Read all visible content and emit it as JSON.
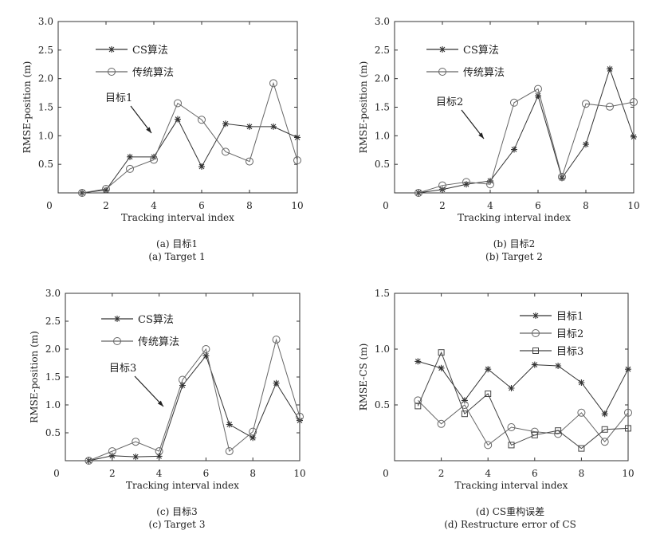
{
  "chart_data": [
    {
      "type": "line",
      "id": "a",
      "ylabel": "RMSE-position (m)",
      "xlabel": "Tracking interval index",
      "caption_cn": "(a) 目标1",
      "caption_en": "(a) Target 1",
      "annotation": "目标1",
      "xlim": [
        0,
        10
      ],
      "ylim": [
        0,
        3.0
      ],
      "xticks": [
        "0",
        "2",
        "4",
        "6",
        "8",
        "10"
      ],
      "yticks": [
        "0.5",
        "1.0",
        "1.5",
        "2.0",
        "2.5",
        "3.0"
      ],
      "legend_position": "top-left",
      "x": [
        1,
        2,
        3,
        4,
        5,
        6,
        7,
        8,
        9,
        10
      ],
      "series": [
        {
          "name": "CS算法",
          "marker": "star",
          "values": [
            0,
            0.05,
            0.63,
            0.63,
            1.29,
            0.46,
            1.21,
            1.16,
            1.16,
            0.97
          ]
        },
        {
          "name": "传统算法",
          "marker": "circle",
          "values": [
            0,
            0.07,
            0.42,
            0.58,
            1.57,
            1.28,
            0.72,
            0.55,
            1.92,
            0.57
          ]
        }
      ]
    },
    {
      "type": "line",
      "id": "b",
      "ylabel": "RMSE-position (m)",
      "xlabel": "Tracking interval index",
      "caption_cn": "(b) 目标2",
      "caption_en": "(b) Target 2",
      "annotation": "目标2",
      "xlim": [
        0,
        10
      ],
      "ylim": [
        0,
        3.0
      ],
      "xticks": [
        "0",
        "2",
        "4",
        "6",
        "8",
        "10"
      ],
      "yticks": [
        "0.5",
        "1.0",
        "1.5",
        "2.0",
        "2.5",
        "3.0"
      ],
      "legend_position": "top-left",
      "x": [
        1,
        2,
        3,
        4,
        5,
        6,
        7,
        8,
        9,
        10
      ],
      "series": [
        {
          "name": "CS算法",
          "marker": "star",
          "values": [
            0,
            0.06,
            0.15,
            0.21,
            0.76,
            1.7,
            0.26,
            0.85,
            2.17,
            0.98
          ]
        },
        {
          "name": "传统算法",
          "marker": "circle",
          "values": [
            0,
            0.13,
            0.19,
            0.15,
            1.58,
            1.82,
            0.28,
            1.56,
            1.51,
            1.59
          ]
        }
      ]
    },
    {
      "type": "line",
      "id": "c",
      "ylabel": "RMSE-position (m)",
      "xlabel": "Tracking interval index",
      "caption_cn": "(c) 目标3",
      "caption_en": "(c) Target 3",
      "annotation": "目标3",
      "xlim": [
        0,
        10
      ],
      "ylim": [
        0,
        3.0
      ],
      "xticks": [
        "0",
        "2",
        "4",
        "6",
        "8",
        "10"
      ],
      "yticks": [
        "0.5",
        "1.0",
        "1.5",
        "2.0",
        "2.5",
        "3.0"
      ],
      "legend_position": "top-left",
      "x": [
        1,
        2,
        3,
        4,
        5,
        6,
        7,
        8,
        9,
        10
      ],
      "series": [
        {
          "name": "CS算法",
          "marker": "star",
          "values": [
            0,
            0.09,
            0.07,
            0.08,
            1.35,
            1.88,
            0.65,
            0.41,
            1.39,
            0.72
          ]
        },
        {
          "name": "传统算法",
          "marker": "circle",
          "values": [
            0,
            0.17,
            0.34,
            0.17,
            1.45,
            2.0,
            0.17,
            0.52,
            2.17,
            0.79
          ]
        }
      ]
    },
    {
      "type": "line",
      "id": "d",
      "ylabel": "RMSE-CS (m)",
      "xlabel": "Tracking interval index",
      "caption_cn": "(d) CS重构误差",
      "caption_en": "(d) Restructure error of CS",
      "xlim": [
        0,
        10
      ],
      "ylim": [
        0,
        1.5
      ],
      "xticks": [
        "0",
        "2",
        "4",
        "6",
        "8",
        "10"
      ],
      "yticks": [
        "0.5",
        "1.0",
        "1.5"
      ],
      "legend_position": "top-right",
      "x": [
        1,
        2,
        3,
        4,
        5,
        6,
        7,
        8,
        9,
        10
      ],
      "series": [
        {
          "name": "目标1",
          "marker": "star",
          "values": [
            0.89,
            0.83,
            0.54,
            0.82,
            0.65,
            0.86,
            0.85,
            0.7,
            0.42,
            0.82
          ]
        },
        {
          "name": "目标2",
          "marker": "circle",
          "values": [
            0.54,
            0.33,
            0.5,
            0.14,
            0.3,
            0.26,
            0.24,
            0.43,
            0.17,
            0.43
          ]
        },
        {
          "name": "目标3",
          "marker": "square",
          "values": [
            0.49,
            0.97,
            0.42,
            0.6,
            0.14,
            0.23,
            0.27,
            0.11,
            0.28,
            0.29
          ]
        }
      ]
    }
  ]
}
